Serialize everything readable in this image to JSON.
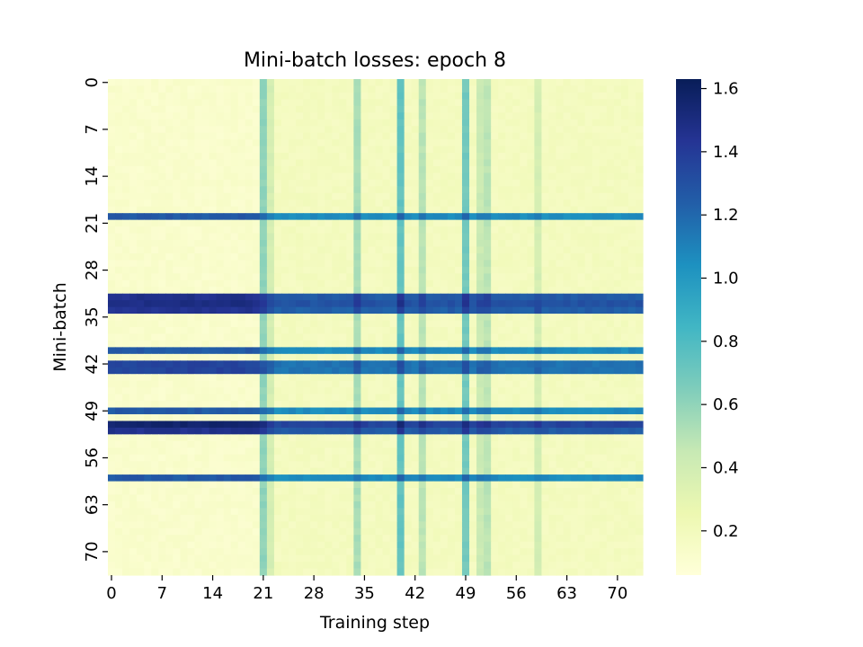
{
  "chart_data": {
    "type": "heatmap",
    "title": "Mini-batch losses: epoch 8",
    "xlabel": "Training step",
    "ylabel": "Mini-batch",
    "n_rows": 74,
    "n_cols": 74,
    "x_ticks": [
      0,
      7,
      14,
      21,
      28,
      35,
      42,
      49,
      56,
      63,
      70
    ],
    "y_ticks": [
      0,
      7,
      14,
      21,
      28,
      35,
      42,
      49,
      56,
      63,
      70
    ],
    "color_range": [
      0.06,
      1.63
    ],
    "colorbar_ticks": [
      0.2,
      0.4,
      0.6,
      0.8,
      1.0,
      1.2,
      1.4,
      1.6
    ],
    "colormap": [
      "#ffffd9",
      "#edf8b1",
      "#c7e9b4",
      "#7fcdbb",
      "#41b6c4",
      "#1d91c0",
      "#225ea8",
      "#253494",
      "#081d58"
    ],
    "high_loss_rows": [
      {
        "row": 20,
        "base_loss": 1.15
      },
      {
        "row": 32,
        "base_loss": 1.35
      },
      {
        "row": 33,
        "base_loss": 1.38
      },
      {
        "row": 34,
        "base_loss": 1.33
      },
      {
        "row": 40,
        "base_loss": 1.15
      },
      {
        "row": 42,
        "base_loss": 1.25
      },
      {
        "row": 43,
        "base_loss": 1.25
      },
      {
        "row": 49,
        "base_loss": 1.15
      },
      {
        "row": 51,
        "base_loss": 1.45
      },
      {
        "row": 52,
        "base_loss": 1.35
      },
      {
        "row": 59,
        "base_loss": 1.15
      }
    ],
    "high_loss_columns": [
      {
        "col": 21,
        "extra_loss": 0.42
      },
      {
        "col": 22,
        "extra_loss": 0.2
      },
      {
        "col": 34,
        "extra_loss": 0.35
      },
      {
        "col": 40,
        "extra_loss": 0.55
      },
      {
        "col": 43,
        "extra_loss": 0.3
      },
      {
        "col": 49,
        "extra_loss": 0.5
      },
      {
        "col": 51,
        "extra_loss": 0.25
      },
      {
        "col": 52,
        "extra_loss": 0.3
      },
      {
        "col": 59,
        "extra_loss": 0.2
      }
    ],
    "background_loss_range": [
      0.1,
      0.25
    ]
  }
}
